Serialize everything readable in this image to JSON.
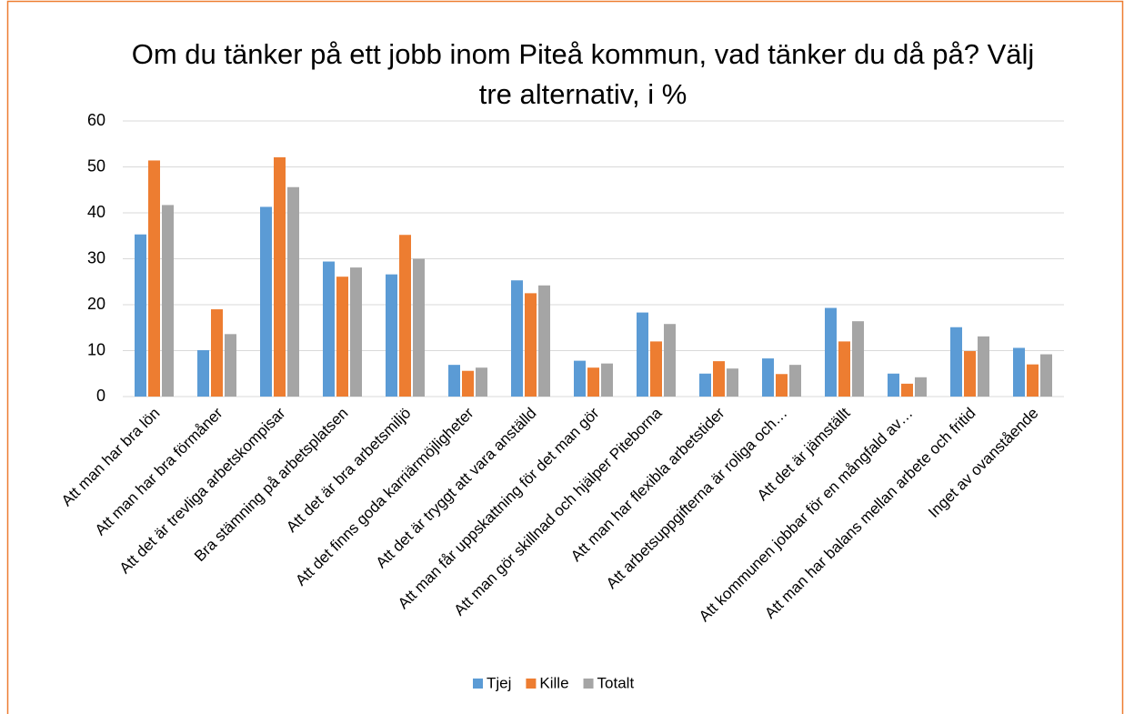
{
  "chart_data": {
    "type": "bar",
    "title": "Om du tänker på ett jobb inom Piteå kommun, vad tänker du då på? Välj tre alternativ, i %",
    "categories": [
      "Att man har bra lön",
      "Att man har bra förmåner",
      "Att det är trevliga arbetskompisar",
      "Bra stämning på arbetsplatsen",
      "Att det är bra arbetsmiljö",
      "Att det finns goda karriärmöjligheter",
      "Att det är tryggt att vara anställd",
      "Att man får uppskattning för det man gör",
      "Att man gör skillnad och hjälper Piteborna",
      "Att man har flexibla arbetstider",
      "Att arbetsuppgifterna är roliga och…",
      "Att det är jämställt",
      "Att kommunen jobbar för en mångfald av…",
      "Att man har balans mellan arbete och fritid",
      "Inget av ovanstående"
    ],
    "series": [
      {
        "name": "Tjej",
        "color": "#5b9bd5",
        "values": [
          35.3,
          10.1,
          41.3,
          29.4,
          26.6,
          6.9,
          25.3,
          7.8,
          18.3,
          5,
          8.3,
          19.3,
          5,
          15.1,
          10.6
        ]
      },
      {
        "name": "Kille",
        "color": "#ed7d31",
        "values": [
          51.4,
          19,
          52.1,
          26.1,
          35.2,
          5.6,
          22.5,
          6.3,
          12,
          7.7,
          4.9,
          12,
          2.8,
          9.9,
          7
        ]
      },
      {
        "name": "Totalt",
        "color": "#a5a5a5",
        "values": [
          41.7,
          13.6,
          45.6,
          28.1,
          30,
          6.3,
          24.2,
          7.2,
          15.8,
          6.1,
          6.9,
          16.4,
          4.2,
          13.1,
          9.2
        ]
      }
    ],
    "ylim": [
      0,
      60
    ],
    "yticks": [
      0,
      10,
      20,
      30,
      40,
      50,
      60
    ],
    "grid": true,
    "legend": "bottom"
  }
}
